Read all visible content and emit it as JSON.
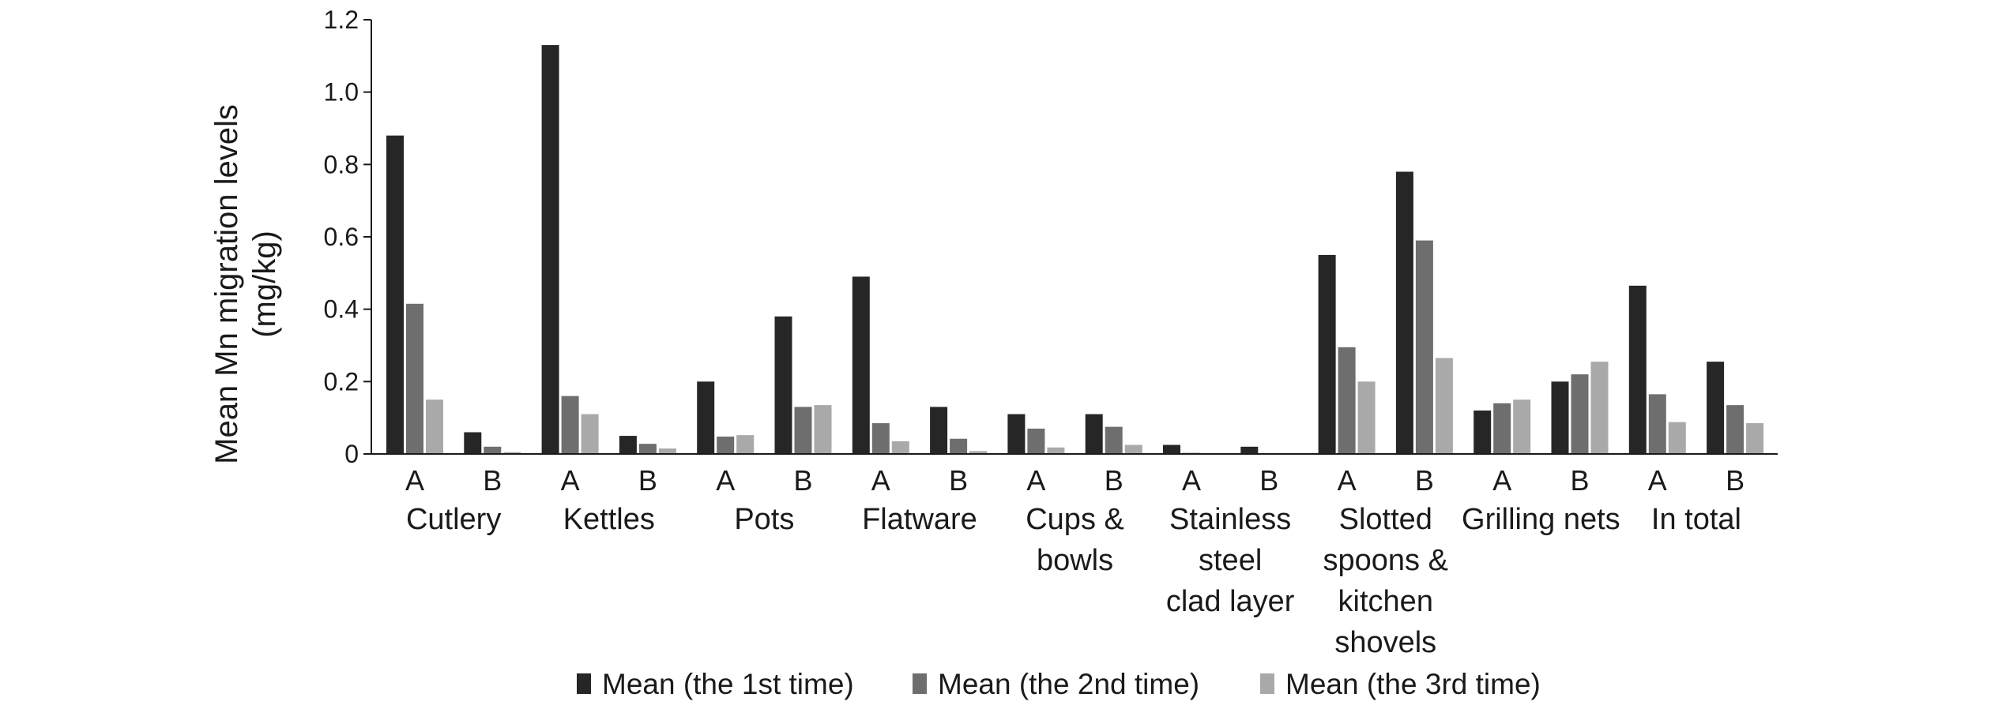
{
  "chart_data": {
    "type": "bar",
    "ylabel": [
      "Mean Mn migration levels",
      "(mg/kg)"
    ],
    "ylim": [
      0,
      1.2
    ],
    "yticks": [
      "0",
      "0.2",
      "0.4",
      "0.6",
      "0.8",
      "1.0",
      "1.2"
    ],
    "grid": false,
    "legend_position": "bottom",
    "groups": [
      {
        "label": [
          "Cutlery"
        ],
        "subcategories": [
          "A",
          "B"
        ]
      },
      {
        "label": [
          "Kettles"
        ],
        "subcategories": [
          "A",
          "B"
        ]
      },
      {
        "label": [
          "Pots"
        ],
        "subcategories": [
          "A",
          "B"
        ]
      },
      {
        "label": [
          "Flatware"
        ],
        "subcategories": [
          "A",
          "B"
        ]
      },
      {
        "label": [
          "Cups &",
          "bowls"
        ],
        "subcategories": [
          "A",
          "B"
        ]
      },
      {
        "label": [
          "Stainless",
          "steel",
          "clad layer"
        ],
        "subcategories": [
          "A",
          "B"
        ]
      },
      {
        "label": [
          "Slotted",
          "spoons &",
          "kitchen",
          "shovels"
        ],
        "subcategories": [
          "A",
          "B"
        ]
      },
      {
        "label": [
          "Grilling nets"
        ],
        "subcategories": [
          "A",
          "B"
        ]
      },
      {
        "label": [
          "In total"
        ],
        "subcategories": [
          "A",
          "B"
        ]
      }
    ],
    "series": [
      {
        "name": "Mean (the 1st time)",
        "color": "#262626",
        "values": [
          0.88,
          0.06,
          1.13,
          0.05,
          0.2,
          0.38,
          0.49,
          0.13,
          0.11,
          0.11,
          0.025,
          0.02,
          0.55,
          0.78,
          0.12,
          0.2,
          0.465,
          0.255
        ]
      },
      {
        "name": "Mean (the 2nd time)",
        "color": "#6e6e6e",
        "values": [
          0.415,
          0.02,
          0.16,
          0.028,
          0.048,
          0.13,
          0.085,
          0.042,
          0.07,
          0.075,
          0.003,
          0.002,
          0.295,
          0.59,
          0.14,
          0.22,
          0.165,
          0.135
        ]
      },
      {
        "name": "Mean (the 3rd time)",
        "color": "#a9a9a9",
        "values": [
          0.15,
          0.005,
          0.11,
          0.015,
          0.052,
          0.135,
          0.035,
          0.008,
          0.018,
          0.025,
          0.002,
          0.001,
          0.2,
          0.265,
          0.15,
          0.255,
          0.088,
          0.085
        ]
      }
    ]
  }
}
